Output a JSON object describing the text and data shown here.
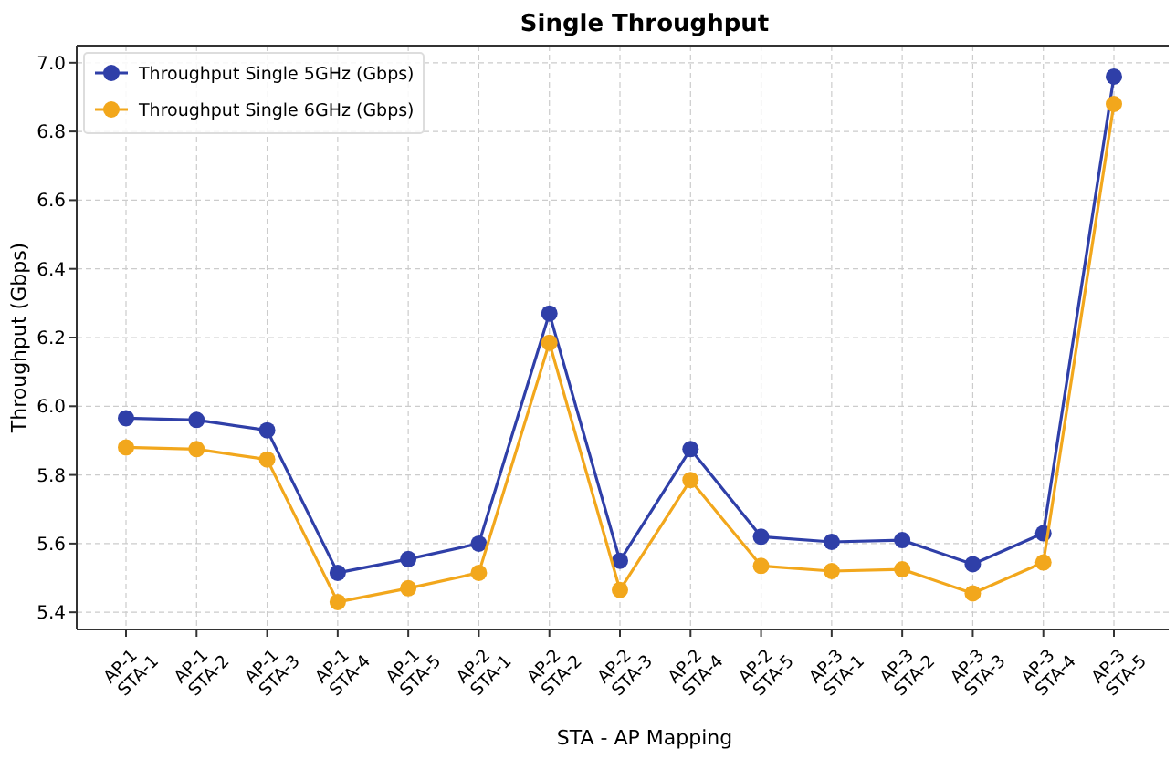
{
  "chart_data": {
    "type": "line",
    "title": "Single Throughput",
    "xlabel": "STA - AP Mapping",
    "ylabel": "Throughput (Gbps)",
    "categories": [
      "AP-1\nSTA-1",
      "AP-1\nSTA-2",
      "AP-1\nSTA-3",
      "AP-1\nSTA-4",
      "AP-1\nSTA-5",
      "AP-2\nSTA-1",
      "AP-2\nSTA-2",
      "AP-2\nSTA-3",
      "AP-2\nSTA-4",
      "AP-2\nSTA-5",
      "AP-3\nSTA-1",
      "AP-3\nSTA-2",
      "AP-3\nSTA-3",
      "AP-3\nSTA-4",
      "AP-3\nSTA-5"
    ],
    "series": [
      {
        "name": "Throughput Single 5GHz (Gbps)",
        "color": "#2f3fa8",
        "values": [
          5.965,
          5.96,
          5.93,
          5.515,
          5.555,
          5.6,
          6.27,
          5.55,
          5.875,
          5.62,
          5.605,
          5.61,
          5.54,
          5.63,
          6.96
        ]
      },
      {
        "name": "Throughput Single 6GHz (Gbps)",
        "color": "#f2a71c",
        "values": [
          5.88,
          5.875,
          5.845,
          5.43,
          5.47,
          5.515,
          6.185,
          5.465,
          5.785,
          5.535,
          5.52,
          5.525,
          5.455,
          5.545,
          6.88
        ]
      }
    ],
    "ylim": [
      5.35,
      7.05
    ],
    "yticks": [
      {
        "value": 5.4,
        "label": "5.4"
      },
      {
        "value": 5.6,
        "label": "5.6"
      },
      {
        "value": 5.8,
        "label": "5.8"
      },
      {
        "value": 6,
        "label": "6.0"
      },
      {
        "value": 6.2,
        "label": "6.2"
      },
      {
        "value": 6.4,
        "label": "6.4"
      },
      {
        "value": 6.6,
        "label": "6.6"
      },
      {
        "value": 6.8,
        "label": "6.8"
      },
      {
        "value": 7,
        "label": "7.0"
      }
    ],
    "grid": true,
    "legend": "top left",
    "marker": "circle",
    "line_style": "solid"
  }
}
